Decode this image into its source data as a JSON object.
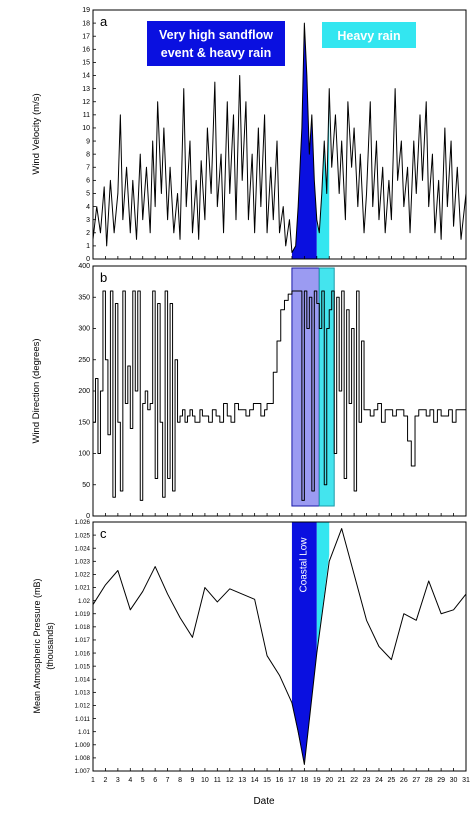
{
  "chart_data": [
    {
      "panel": "a",
      "type": "line",
      "ylabel": "Wind Velocity (m/s)",
      "ylim": [
        0,
        19
      ],
      "yticks": [
        0,
        1,
        2,
        3,
        4,
        5,
        6,
        7,
        8,
        9,
        10,
        11,
        12,
        13,
        14,
        15,
        16,
        17,
        18,
        19
      ],
      "xlim": [
        1,
        31
      ],
      "annotations": [
        {
          "text_lines": [
            "Very high sandflow",
            "event & heavy rain"
          ],
          "color": "#0a10e0"
        },
        {
          "text_lines": [
            "Heavy rain"
          ],
          "color": "#33e6f0"
        }
      ],
      "series": [
        {
          "x": [
            1.0,
            1.3,
            1.6,
            1.9,
            2.1,
            2.4,
            2.7,
            3.0,
            3.2,
            3.4,
            3.7,
            4.0,
            4.2,
            4.5,
            4.8,
            5.0,
            5.3,
            5.6,
            5.8,
            6.0,
            6.2,
            6.5,
            6.7,
            7.0,
            7.2,
            7.5,
            7.8,
            8.0,
            8.3,
            8.5,
            8.8,
            9.0,
            9.3,
            9.5,
            9.7,
            10.0,
            10.2,
            10.5,
            10.8,
            11.0,
            11.3,
            11.5,
            11.8,
            12.0,
            12.3,
            12.5,
            12.8,
            13.0,
            13.3,
            13.5,
            13.8,
            14.0,
            14.3,
            14.5,
            14.8,
            15.0,
            15.3,
            15.5,
            15.8,
            16.0,
            16.3,
            16.5,
            16.8,
            17.0,
            17.3,
            17.5,
            17.8,
            18.0,
            18.2,
            18.4,
            18.6,
            18.8,
            19.0,
            19.2,
            19.4,
            19.6,
            19.8,
            20.0,
            20.2,
            20.5,
            20.8,
            21.0,
            21.3,
            21.5,
            21.8,
            22.0,
            22.3,
            22.5,
            22.8,
            23.0,
            23.3,
            23.5,
            23.8,
            24.0,
            24.3,
            24.5,
            24.8,
            25.0,
            25.3,
            25.5,
            25.8,
            26.0,
            26.3,
            26.5,
            26.8,
            27.0,
            27.3,
            27.5,
            27.8,
            28.0,
            28.3,
            28.5,
            28.8,
            29.0,
            29.3,
            29.5,
            29.8,
            30.0,
            30.3,
            30.6,
            31.0
          ],
          "values": [
            1.5,
            4.0,
            2.0,
            5.5,
            1.0,
            6.0,
            2.0,
            5.0,
            11.0,
            3.0,
            7.0,
            2.0,
            6.0,
            1.5,
            8.0,
            3.0,
            7.0,
            2.0,
            9.0,
            4.0,
            12.0,
            5.0,
            10.0,
            3.0,
            7.0,
            2.0,
            5.0,
            1.5,
            13.0,
            4.0,
            9.0,
            2.0,
            6.0,
            1.5,
            7.5,
            3.0,
            10.0,
            5.0,
            13.5,
            4.0,
            8.0,
            2.0,
            12.0,
            5.0,
            11.0,
            3.0,
            14.0,
            6.0,
            12.0,
            3.0,
            8.0,
            2.0,
            10.0,
            4.0,
            11.0,
            2.0,
            7.0,
            3.0,
            9.0,
            2.0,
            4.0,
            1.0,
            3.0,
            0.5,
            1.0,
            4.0,
            10.0,
            18.0,
            14.0,
            8.0,
            11.0,
            6.0,
            3.0,
            2.0,
            5.0,
            9.0,
            5.0,
            13.0,
            7.0,
            11.0,
            5.0,
            9.0,
            3.0,
            12.0,
            7.0,
            10.0,
            4.0,
            8.0,
            2.0,
            5.0,
            12.0,
            4.0,
            9.0,
            3.0,
            7.0,
            2.0,
            6.0,
            3.0,
            13.0,
            6.0,
            9.0,
            4.0,
            7.0,
            2.0,
            9.0,
            5.0,
            11.0,
            6.0,
            12.0,
            4.0,
            8.0,
            2.0,
            6.0,
            1.5,
            10.0,
            4.0,
            9.0,
            2.5,
            7.0,
            1.5,
            5.0
          ]
        }
      ]
    },
    {
      "panel": "b",
      "type": "line",
      "ylabel": "Wind Direction (degrees)",
      "ylim": [
        0,
        400
      ],
      "yticks": [
        0,
        50,
        100,
        150,
        200,
        250,
        300,
        350,
        400
      ],
      "xlim": [
        1,
        31
      ],
      "series": [
        {
          "x": [
            1.0,
            1.2,
            1.4,
            1.6,
            1.8,
            2.0,
            2.2,
            2.4,
            2.6,
            2.8,
            3.0,
            3.2,
            3.4,
            3.6,
            3.8,
            4.0,
            4.2,
            4.4,
            4.6,
            4.8,
            5.0,
            5.2,
            5.4,
            5.6,
            5.8,
            6.0,
            6.2,
            6.4,
            6.6,
            6.8,
            7.0,
            7.2,
            7.4,
            7.6,
            7.8,
            8.0,
            8.2,
            8.4,
            8.6,
            8.8,
            9.0,
            9.2,
            9.4,
            9.6,
            9.8,
            10.0,
            10.3,
            10.6,
            10.9,
            11.2,
            11.5,
            11.8,
            12.1,
            12.4,
            12.7,
            13.0,
            13.3,
            13.6,
            13.9,
            14.2,
            14.5,
            14.8,
            15.0,
            15.2,
            15.5,
            15.8,
            16.1,
            16.4,
            16.7,
            17.0,
            17.2,
            17.4,
            17.6,
            17.8,
            18.0,
            18.2,
            18.4,
            18.6,
            18.8,
            19.0,
            19.2,
            19.4,
            19.6,
            19.8,
            20.0,
            20.2,
            20.4,
            20.6,
            20.8,
            21.0,
            21.2,
            21.4,
            21.6,
            21.8,
            22.0,
            22.2,
            22.4,
            22.6,
            22.8,
            23.0,
            23.3,
            23.6,
            23.9,
            24.2,
            24.5,
            24.8,
            25.1,
            25.4,
            25.7,
            26.0,
            26.3,
            26.6,
            26.9,
            27.2,
            27.5,
            27.8,
            28.1,
            28.4,
            28.7,
            29.0,
            29.3,
            29.6,
            29.9,
            30.2,
            30.5,
            31.0
          ],
          "values": [
            150,
            220,
            100,
            200,
            360,
            250,
            130,
            360,
            30,
            340,
            150,
            40,
            360,
            180,
            240,
            140,
            360,
            200,
            360,
            25,
            180,
            200,
            170,
            180,
            360,
            60,
            340,
            150,
            30,
            360,
            60,
            340,
            40,
            250,
            150,
            160,
            170,
            150,
            160,
            170,
            160,
            150,
            150,
            170,
            160,
            160,
            150,
            170,
            160,
            150,
            180,
            160,
            150,
            180,
            170,
            170,
            160,
            170,
            180,
            180,
            160,
            170,
            180,
            180,
            230,
            280,
            330,
            345,
            355,
            360,
            360,
            360,
            360,
            25,
            360,
            300,
            350,
            40,
            360,
            340,
            300,
            360,
            50,
            300,
            330,
            360,
            100,
            350,
            200,
            360,
            60,
            330,
            180,
            300,
            40,
            360,
            150,
            280,
            170,
            170,
            160,
            170,
            180,
            150,
            170,
            170,
            160,
            170,
            170,
            160,
            120,
            80,
            160,
            170,
            170,
            160,
            170,
            150,
            170,
            160,
            160,
            170,
            150,
            170,
            170,
            160
          ]
        }
      ]
    },
    {
      "panel": "c",
      "type": "line",
      "ylabel": "Mean Atmospheric Pressure (mB)",
      "ylabel2": "(thousands)",
      "ylim": [
        1.007,
        1.026
      ],
      "yticks": [
        1.007,
        1.008,
        1.009,
        1.01,
        1.011,
        1.012,
        1.013,
        1.014,
        1.015,
        1.016,
        1.017,
        1.018,
        1.019,
        1.02,
        1.021,
        1.022,
        1.023,
        1.024,
        1.025,
        1.026
      ],
      "xlabel": "Date",
      "xticks": [
        1,
        2,
        3,
        4,
        5,
        6,
        7,
        8,
        9,
        10,
        11,
        12,
        13,
        14,
        15,
        16,
        17,
        18,
        19,
        20,
        21,
        22,
        23,
        24,
        25,
        26,
        27,
        28,
        29,
        30,
        31
      ],
      "xlim": [
        1,
        31
      ],
      "annotations": [
        {
          "text_lines": [
            "Coastal Low"
          ],
          "color": "#0a10e0"
        }
      ],
      "series": [
        {
          "x": [
            1,
            2,
            3,
            4,
            5,
            6,
            7,
            8,
            9,
            10,
            11,
            12,
            13,
            14,
            15,
            16,
            17,
            17.5,
            18,
            19,
            20,
            21,
            22,
            23,
            24,
            25,
            26,
            27,
            28,
            29,
            30,
            31
          ],
          "values": [
            1.0197,
            1.0212,
            1.0223,
            1.0193,
            1.0207,
            1.0226,
            1.0205,
            1.0187,
            1.0172,
            1.021,
            1.0199,
            1.0209,
            1.0205,
            1.0201,
            1.0158,
            1.0143,
            1.0122,
            1.01,
            1.0075,
            1.016,
            1.023,
            1.0255,
            1.022,
            1.0185,
            1.0165,
            1.0155,
            1.019,
            1.0185,
            1.0215,
            1.019,
            1.0193,
            1.0205
          ]
        }
      ]
    }
  ]
}
